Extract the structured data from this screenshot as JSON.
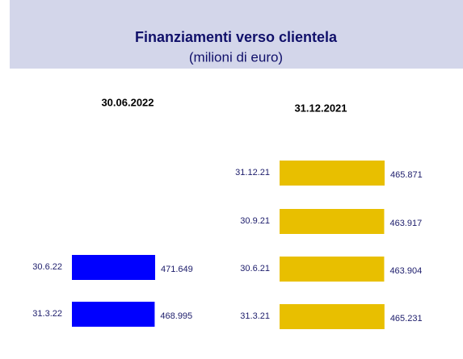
{
  "header": {
    "title": "Finanziamenti verso clientela",
    "subtitle": "(milioni di euro)"
  },
  "chart_data": [
    {
      "type": "bar",
      "orientation": "horizontal",
      "title": "30.06.2022",
      "color": "#0000ff",
      "categories": [
        "30.6.22",
        "31.3.22"
      ],
      "values": [
        471649,
        468995
      ],
      "value_labels": [
        "471.649",
        "468.995"
      ]
    },
    {
      "type": "bar",
      "orientation": "horizontal",
      "title": "31.12.2021",
      "color": "#e8bf00",
      "categories": [
        "31.12.21",
        "30.9.21",
        "30.6.21",
        "31.3.21"
      ],
      "values": [
        465871,
        463917,
        463904,
        465231
      ],
      "value_labels": [
        "465.871",
        "463.917",
        "463.904",
        "465.231"
      ]
    }
  ]
}
